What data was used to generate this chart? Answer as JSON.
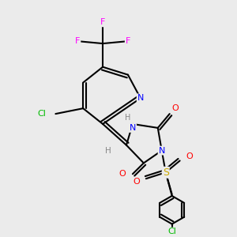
{
  "background_color": "#ebebeb",
  "atom_colors": {
    "F": "#ff00ff",
    "Cl": "#00bb00",
    "N": "#0000ff",
    "O": "#ff0000",
    "S": "#ccaa00",
    "H": "#888888",
    "C": "#000000"
  }
}
